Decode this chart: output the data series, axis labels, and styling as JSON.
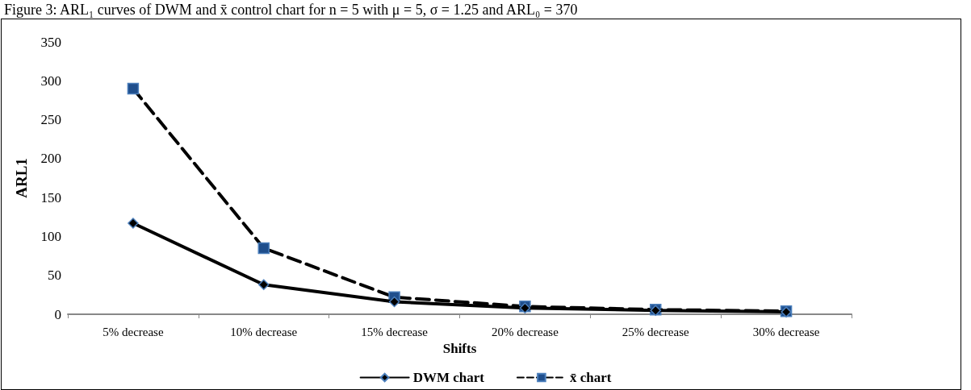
{
  "chart_data": {
    "type": "line",
    "title": "Figure 3: ARL₁ curves of DWM and x̄ control chart for n = 5 with μ = 5, σ = 1.25 and ARL₀ = 370",
    "xlabel": "Shifts",
    "ylabel": "ARL1",
    "categories": [
      "5% decrease",
      "10% decrease",
      "15% decrease",
      "20% decrease",
      "25% decrease",
      "30% decrease"
    ],
    "series": [
      {
        "name": "DWM chart",
        "color": "#000000",
        "line_style": "solid",
        "marker": "diamond",
        "values": [
          117,
          38,
          16,
          8,
          5,
          3
        ]
      },
      {
        "name": "x̄ chart",
        "color": "#000000",
        "line_style": "dashed",
        "marker": "square",
        "values": [
          290,
          85,
          22,
          10,
          6,
          4
        ]
      }
    ],
    "ylim": [
      0,
      350
    ],
    "yticks": [
      0,
      50,
      100,
      150,
      200,
      250,
      300,
      350
    ],
    "grid": false,
    "legend": "bottom"
  }
}
